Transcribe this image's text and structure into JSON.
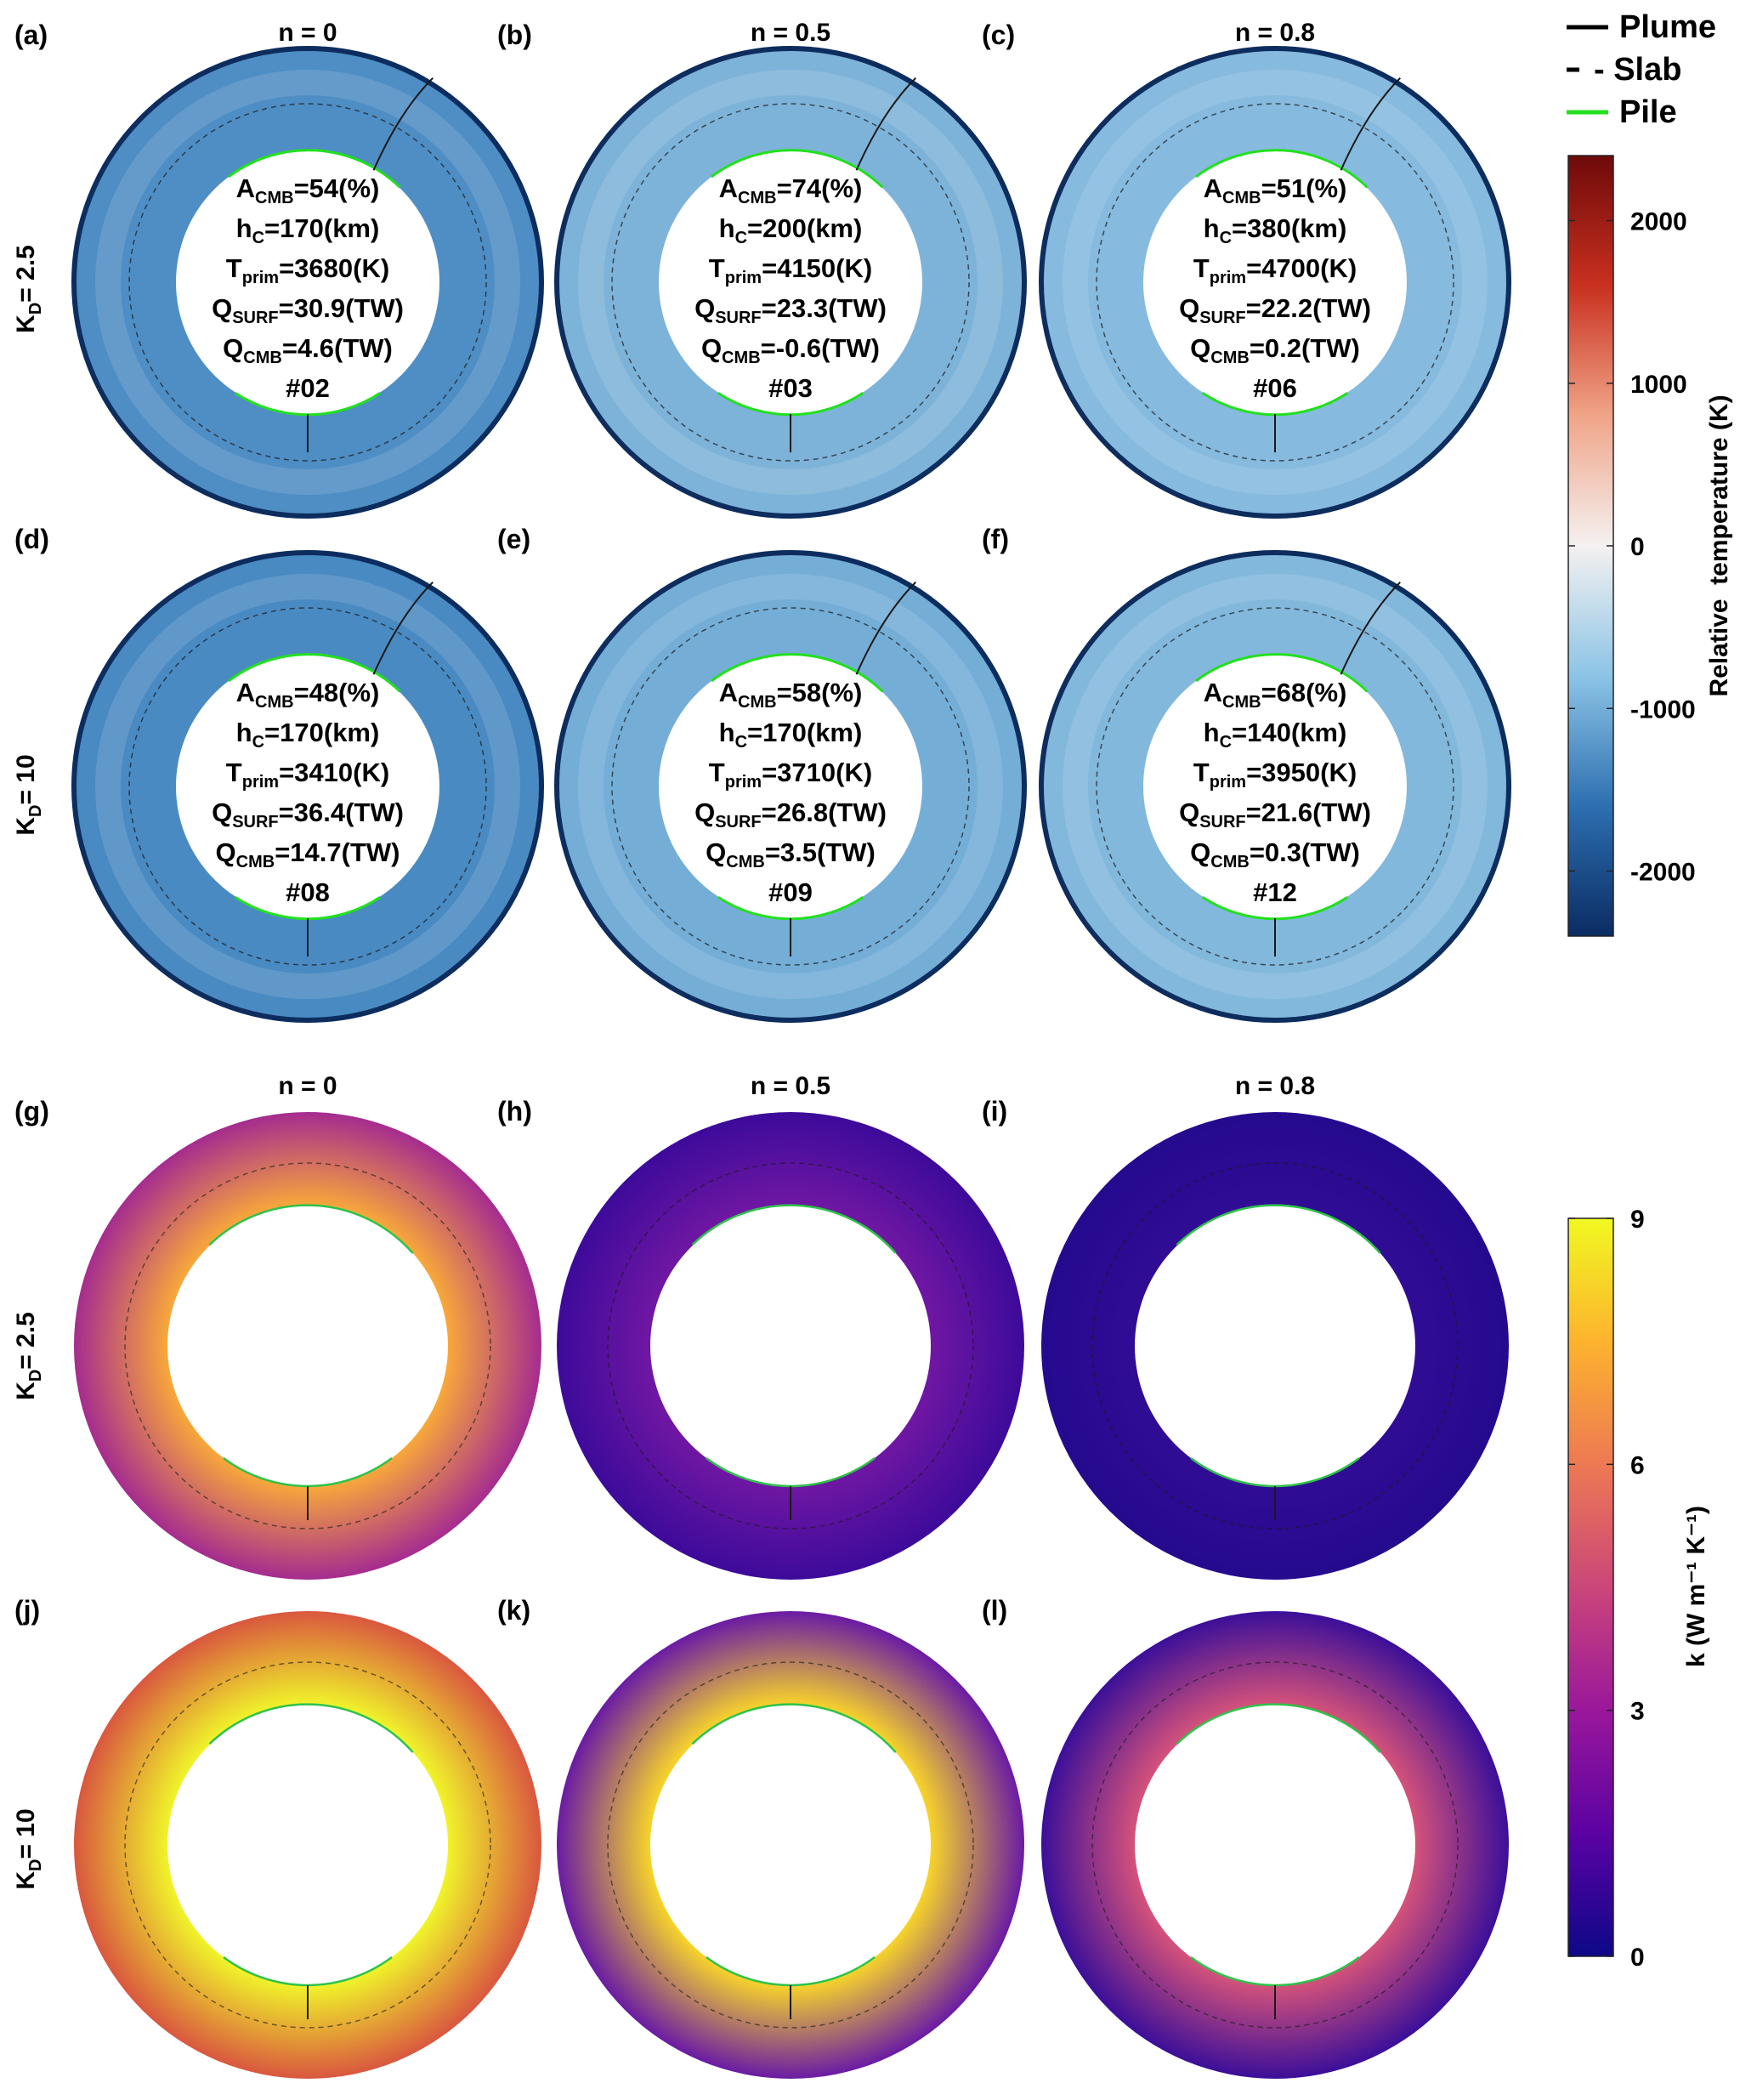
{
  "legend": {
    "items": [
      {
        "label": "Plume",
        "style": "solid",
        "color": "#000000"
      },
      {
        "label": "- Slab",
        "style": "dashed",
        "color": "#000000"
      },
      {
        "label": "Pile",
        "style": "solid",
        "color": "#22e01e"
      }
    ]
  },
  "colorbar_temperature": {
    "title": "Relative  temperature (K)",
    "ticks": [
      "2000",
      "1000",
      "0",
      "-1000",
      "-2000"
    ],
    "range": [
      -2400,
      2400
    ],
    "colors": [
      "#0b2c63",
      "#2d6fb1",
      "#8cc4e6",
      "#f4f1f0",
      "#f0a488",
      "#c9301f",
      "#6e0a0a"
    ]
  },
  "colorbar_conductivity": {
    "title": "k (W m⁻¹ K⁻¹)",
    "ticks": [
      "9",
      "6",
      "3",
      "0"
    ],
    "range": [
      0,
      9
    ],
    "colors": [
      "#0d0887",
      "#5b02a3",
      "#9a179b",
      "#cb4679",
      "#ed7953",
      "#fdb32e",
      "#f0f921"
    ]
  },
  "column_titles": [
    "n = 0",
    "n = 0.5",
    "n = 0.8"
  ],
  "row_titles": [
    "K",
    "D",
    "= 2.5",
    "= 10"
  ],
  "panels_temperature": [
    {
      "letter": "(a)",
      "acmb": "54(%)",
      "hc": "170(km)",
      "tprim": "3680(K)",
      "qsurf": "30.9(TW)",
      "qcmb": "4.6(TW)",
      "id": "#02",
      "bg": "#4f8ec4"
    },
    {
      "letter": "(b)",
      "acmb": "74(%)",
      "hc": "200(km)",
      "tprim": "4150(K)",
      "qsurf": "23.3(TW)",
      "qcmb": "-0.6(TW)",
      "id": "#03",
      "bg": "#7eb3d9"
    },
    {
      "letter": "(c)",
      "acmb": "51(%)",
      "hc": "380(km)",
      "tprim": "4700(K)",
      "qsurf": "22.2(TW)",
      "qcmb": "0.2(TW)",
      "id": "#06",
      "bg": "#86bade"
    },
    {
      "letter": "(d)",
      "acmb": "48(%)",
      "hc": "170(km)",
      "tprim": "3410(K)",
      "qsurf": "36.4(TW)",
      "qcmb": "14.7(TW)",
      "id": "#08",
      "bg": "#4a8ac2"
    },
    {
      "letter": "(e)",
      "acmb": "58(%)",
      "hc": "170(km)",
      "tprim": "3710(K)",
      "qsurf": "26.8(TW)",
      "qcmb": "3.5(TW)",
      "id": "#09",
      "bg": "#74aed7"
    },
    {
      "letter": "(f)",
      "acmb": "68(%)",
      "hc": "140(km)",
      "tprim": "3950(K)",
      "qsurf": "21.6(TW)",
      "qcmb": "0.3(TW)",
      "id": "#12",
      "bg": "#82b8dc"
    }
  ],
  "panels_conductivity": [
    {
      "letter": "(g)",
      "outer": "#a52c8f",
      "inner": "#f8a83a"
    },
    {
      "letter": "(h)",
      "outer": "#3d0a9a",
      "inner": "#6f17a3"
    },
    {
      "letter": "(i)",
      "outer": "#250a8e",
      "inner": "#300c95"
    },
    {
      "letter": "(j)",
      "outer": "#d9573f",
      "inner": "#f0f42a"
    },
    {
      "letter": "(k)",
      "outer": "#6a1ba4",
      "inner": "#f7d42a"
    },
    {
      "letter": "(l)",
      "outer": "#3b0f99",
      "inner": "#d4527a"
    }
  ]
}
